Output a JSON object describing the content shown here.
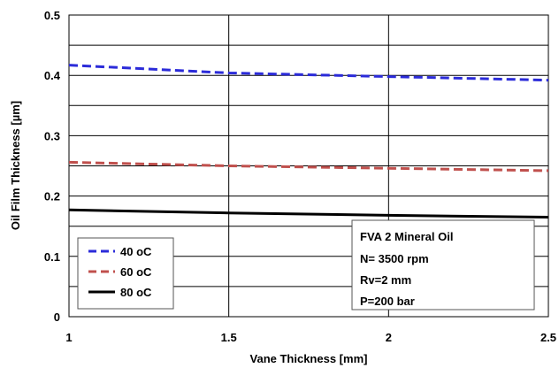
{
  "chart_data": {
    "type": "line",
    "xlabel": "Vane Thickness [mm]",
    "ylabel": "Oil Film Thickness [µm]",
    "xlim": [
      1,
      2.5
    ],
    "ylim": [
      0,
      0.5
    ],
    "x_ticks": [
      "1",
      "1.5",
      "2",
      "2.5"
    ],
    "y_ticks": [
      "0",
      "0.1",
      "0.2",
      "0.3",
      "0.4",
      "0.5"
    ],
    "grid": true,
    "legend_position": "bottom-left",
    "series": [
      {
        "name": "40 oC",
        "color": "#2b2bd9",
        "style": "dashed",
        "x": [
          1,
          1.5,
          2,
          2.5
        ],
        "y": [
          0.417,
          0.404,
          0.398,
          0.392
        ]
      },
      {
        "name": "60 oC",
        "color": "#c0504d",
        "style": "dashed",
        "x": [
          1,
          1.5,
          2,
          2.5
        ],
        "y": [
          0.256,
          0.25,
          0.246,
          0.242
        ]
      },
      {
        "name": "80 oC",
        "color": "#000000",
        "style": "solid",
        "x": [
          1,
          1.5,
          2,
          2.5
        ],
        "y": [
          0.177,
          0.172,
          0.168,
          0.165
        ]
      }
    ],
    "annotation": [
      "FVA 2 Mineral Oil",
      "N= 3500 rpm",
      "Rv=2 mm",
      "P=200 bar"
    ]
  }
}
